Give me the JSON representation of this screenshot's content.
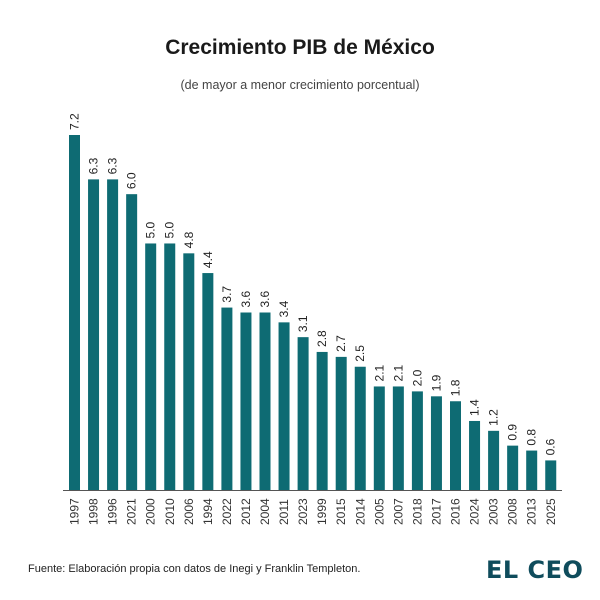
{
  "title": "Crecimiento PIB de México",
  "subtitle": "(de mayor a menor crecimiento porcentual)",
  "source": "Fuente: Elaboración propia con datos de Inegi y Franklin Templeton.",
  "logo_text": "EL CEO",
  "colors": {
    "bar": "#0e6b73",
    "axis": "#555555",
    "logo": "#0f4c5c"
  },
  "chart_data": {
    "type": "bar",
    "title": "Crecimiento PIB de México",
    "subtitle": "(de mayor a menor crecimiento porcentual)",
    "xlabel": "",
    "ylabel": "",
    "ylim": [
      0,
      7.2
    ],
    "grid": false,
    "categories": [
      "1997",
      "1998",
      "1996",
      "2021",
      "2000",
      "2010",
      "2006",
      "1994",
      "2022",
      "2012",
      "2004",
      "2011",
      "2023",
      "1999",
      "2015",
      "2014",
      "2005",
      "2007",
      "2018",
      "2017",
      "2016",
      "2024",
      "2003",
      "2008",
      "2013",
      "2025"
    ],
    "values": [
      7.2,
      6.3,
      6.3,
      6.0,
      5.0,
      5.0,
      4.8,
      4.4,
      3.7,
      3.6,
      3.6,
      3.4,
      3.1,
      2.8,
      2.7,
      2.5,
      2.1,
      2.1,
      2.0,
      1.9,
      1.8,
      1.4,
      1.2,
      0.9,
      0.8,
      0.6
    ],
    "value_labels": [
      "7.2",
      "6.3",
      "6.3",
      "6.0",
      "5.0",
      "5.0",
      "4.8",
      "4.4",
      "3.7",
      "3.6",
      "3.6",
      "3.4",
      "3.1",
      "2.8",
      "2.7",
      "2.5",
      "2.1",
      "2.1",
      "2.0",
      "1.9",
      "1.8",
      "1.4",
      "1.2",
      "0.9",
      "0.8",
      "0.6"
    ]
  }
}
